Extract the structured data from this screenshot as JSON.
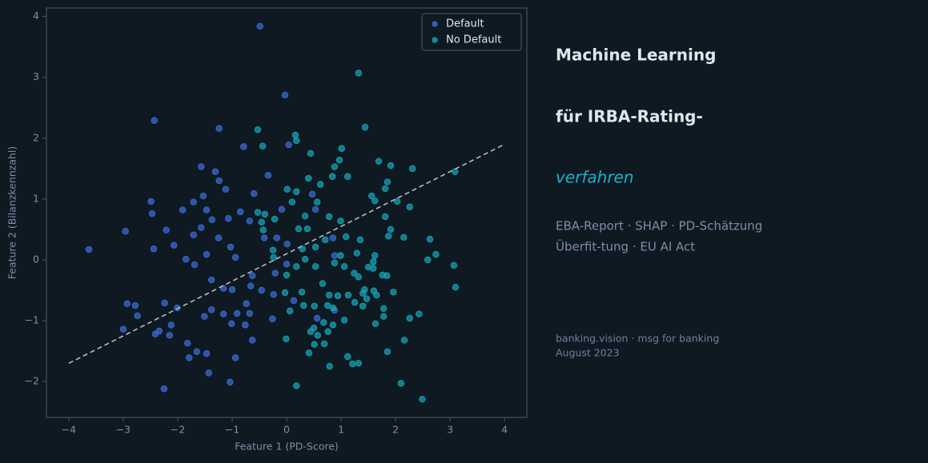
{
  "chart_data": {
    "type": "scatter",
    "xlabel": "Feature 1 (PD-Score)",
    "ylabel": "Feature 2 (Bilanzkennzahl)",
    "xlim": [
      -4.41,
      4.41
    ],
    "ylim": [
      -2.59,
      4.14
    ],
    "xticks": [
      {
        "value": -4,
        "label": "−4"
      },
      {
        "value": -3,
        "label": "−3"
      },
      {
        "value": -2,
        "label": "−2"
      },
      {
        "value": -1,
        "label": "−1"
      },
      0,
      1,
      2,
      3,
      4
    ],
    "yticks": [
      {
        "value": -2,
        "label": "−2"
      },
      {
        "value": -1,
        "label": "−1"
      },
      0,
      1,
      2,
      3,
      4
    ],
    "legend": "upper right",
    "series": [
      {
        "name": "Default",
        "color": "#3a6fd8",
        "x": [
          -3.63,
          -2.43,
          -0.49,
          -0.03,
          -1.24,
          -0.79,
          -1.57,
          -1.31,
          -1.24,
          -1.12,
          -1.53,
          -1.71,
          -2.49,
          -2.47,
          -1.91,
          -1.47,
          -0.6,
          -0.34,
          0.04,
          0.47,
          -0.09,
          -2.96,
          -2.21,
          -1.71,
          -1.57,
          -1.37,
          -1.07,
          -0.85,
          -0.68,
          -2.44,
          -2.07,
          -1.85,
          -1.69,
          -1.47,
          -1.25,
          -1.03,
          -0.94,
          -0.41,
          -0.18,
          0.01,
          0,
          -0.21,
          -0.63,
          -0.66,
          -0.46,
          -0.24,
          0.13,
          -0.26,
          -0.74,
          -1.16,
          -1,
          -1.38,
          -1.38,
          -1.51,
          -1.16,
          -0.91,
          -0.68,
          -0.76,
          -1.01,
          -2.93,
          -2.78,
          -2.74,
          -2.24,
          -2.01,
          -3,
          -2.34,
          -2.41,
          -2.12,
          -2.15,
          -1.82,
          -1.79,
          -1.65,
          -1.47,
          -0.94,
          -0.63,
          -1.43,
          -1.04,
          -2.25,
          0.53,
          0.85,
          0.88,
          0.56,
          0.88
        ],
        "values": [
          0.17,
          2.29,
          3.84,
          2.71,
          2.16,
          1.86,
          1.53,
          1.45,
          1.3,
          1.16,
          1.05,
          0.95,
          0.96,
          0.76,
          0.82,
          0.82,
          1.09,
          1.39,
          1.89,
          1.08,
          0.83,
          0.47,
          0.49,
          0.41,
          0.53,
          0.66,
          0.68,
          0.79,
          0.64,
          0.18,
          0.24,
          0.01,
          -0.08,
          0.09,
          0.36,
          0.21,
          0.04,
          0.36,
          0.36,
          0.26,
          -0.07,
          -0.22,
          -0.26,
          -0.43,
          -0.5,
          -0.57,
          -0.67,
          -0.97,
          -0.72,
          -0.47,
          -0.49,
          -0.33,
          -0.82,
          -0.93,
          -0.89,
          -0.88,
          -0.88,
          -1.07,
          -1.05,
          -0.72,
          -0.75,
          -0.92,
          -0.71,
          -0.79,
          -1.14,
          -1.17,
          -1.22,
          -1.07,
          -1.24,
          -1.37,
          -1.61,
          -1.51,
          -1.54,
          -1.61,
          -1.32,
          -1.86,
          -2.01,
          -2.12,
          0.83,
          0.36,
          0.07,
          -0.96,
          -0.83
        ]
      },
      {
        "name": "No Default",
        "color": "#17a7b8",
        "x": [
          1.32,
          1.44,
          -0.53,
          0.16,
          0.18,
          -0.44,
          0.44,
          1.01,
          0.97,
          0.88,
          1.69,
          1.91,
          2.31,
          3.09,
          0.4,
          1.12,
          0.84,
          0.62,
          1.85,
          1.81,
          0.01,
          0.18,
          1.56,
          1.62,
          2.03,
          2.26,
          0.1,
          0.56,
          -0.4,
          -0.53,
          -0.22,
          0.34,
          0.78,
          0.99,
          1.81,
          -0.46,
          0.22,
          0.38,
          -0.43,
          1.91,
          0.71,
          1.09,
          1.35,
          1.87,
          2.15,
          2.63,
          0.29,
          0.53,
          -0.25,
          -0.24,
          0.34,
          1.29,
          0.99,
          1.62,
          2.74,
          2.59,
          1.59,
          0.18,
          0.53,
          0.88,
          1.06,
          1.5,
          1.59,
          3.07,
          0,
          1.24,
          1.32,
          1.76,
          1.84,
          0.66,
          3.1,
          -0.03,
          0.28,
          1.43,
          1.6,
          0.78,
          0.94,
          1.13,
          1.4,
          1.65,
          1.96,
          1.25,
          1.47,
          0.31,
          0.51,
          0.75,
          0.85,
          1.4,
          1.78,
          0.06,
          1.78,
          2.43,
          2.26,
          1.06,
          0.68,
          0.85,
          1.63,
          0.5,
          0.44,
          0.57,
          0.76,
          -0.01,
          2.16,
          0.51,
          0.69,
          0.41,
          1.85,
          1.12,
          1.21,
          1.32,
          0.79,
          2.1,
          0.18,
          2.49
        ],
        "values": [
          3.07,
          2.18,
          2.14,
          2.05,
          1.96,
          1.87,
          1.75,
          1.83,
          1.64,
          1.53,
          1.62,
          1.55,
          1.5,
          1.45,
          1.34,
          1.37,
          1.37,
          1.24,
          1.28,
          1.17,
          1.16,
          1.12,
          1.05,
          0.97,
          0.96,
          0.87,
          0.95,
          0.95,
          0.75,
          0.78,
          0.67,
          0.72,
          0.71,
          0.64,
          0.71,
          0.62,
          0.51,
          0.51,
          0.49,
          0.5,
          0.33,
          0.38,
          0.33,
          0.39,
          0.37,
          0.34,
          0.18,
          0.21,
          0.16,
          0.04,
          0.01,
          0.11,
          0.07,
          0.07,
          0.09,
          0,
          -0.03,
          -0.11,
          -0.11,
          -0.05,
          -0.11,
          -0.12,
          -0.14,
          -0.09,
          -0.25,
          -0.22,
          -0.28,
          -0.25,
          -0.26,
          -0.39,
          -0.45,
          -0.54,
          -0.53,
          -0.49,
          -0.51,
          -0.58,
          -0.59,
          -0.58,
          -0.55,
          -0.58,
          -0.53,
          -0.7,
          -0.64,
          -0.75,
          -0.76,
          -0.75,
          -0.79,
          -0.76,
          -0.8,
          -0.84,
          -0.93,
          -0.89,
          -0.96,
          -0.99,
          -1.03,
          -1.07,
          -1.05,
          -1.12,
          -1.18,
          -1.24,
          -1.18,
          -1.3,
          -1.32,
          -1.39,
          -1.38,
          -1.53,
          -1.51,
          -1.59,
          -1.71,
          -1.7,
          -1.75,
          -2.03,
          -2.07,
          -2.29
        ]
      }
    ],
    "line": {
      "x": [
        -4,
        4
      ],
      "y": [
        -1.7,
        1.9
      ],
      "color": "#b4bcc8",
      "dashed": true
    }
  },
  "panel": {
    "title_1": "Machine Learning",
    "title_2": "für IRBA-Rating-",
    "title_3": "verfahren",
    "sub_1": "EBA-Report · SHAP · PD-Schätzung",
    "sub_2": "Überfit-tung · EU AI Act",
    "foot_1": "banking.vision · msg for banking",
    "foot_2": "August 2023"
  }
}
